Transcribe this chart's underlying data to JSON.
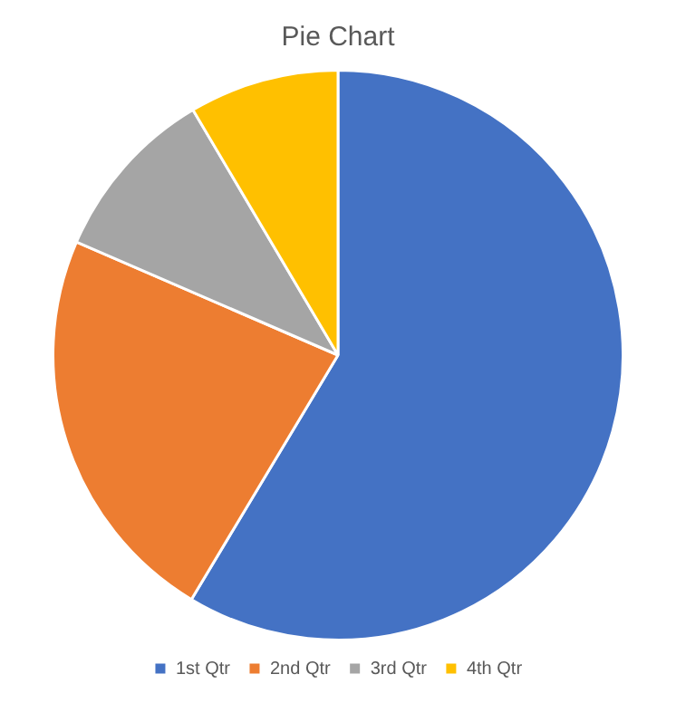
{
  "chart_data": {
    "type": "pie",
    "title": "Pie Chart",
    "categories": [
      "1st Qtr",
      "2nd Qtr",
      "3rd Qtr",
      "4th Qtr"
    ],
    "values": [
      58.6,
      22.9,
      10.0,
      8.5
    ],
    "colors": [
      "#4472c4",
      "#ed7d31",
      "#a5a5a5",
      "#ffc000"
    ],
    "legend": "bottom"
  }
}
